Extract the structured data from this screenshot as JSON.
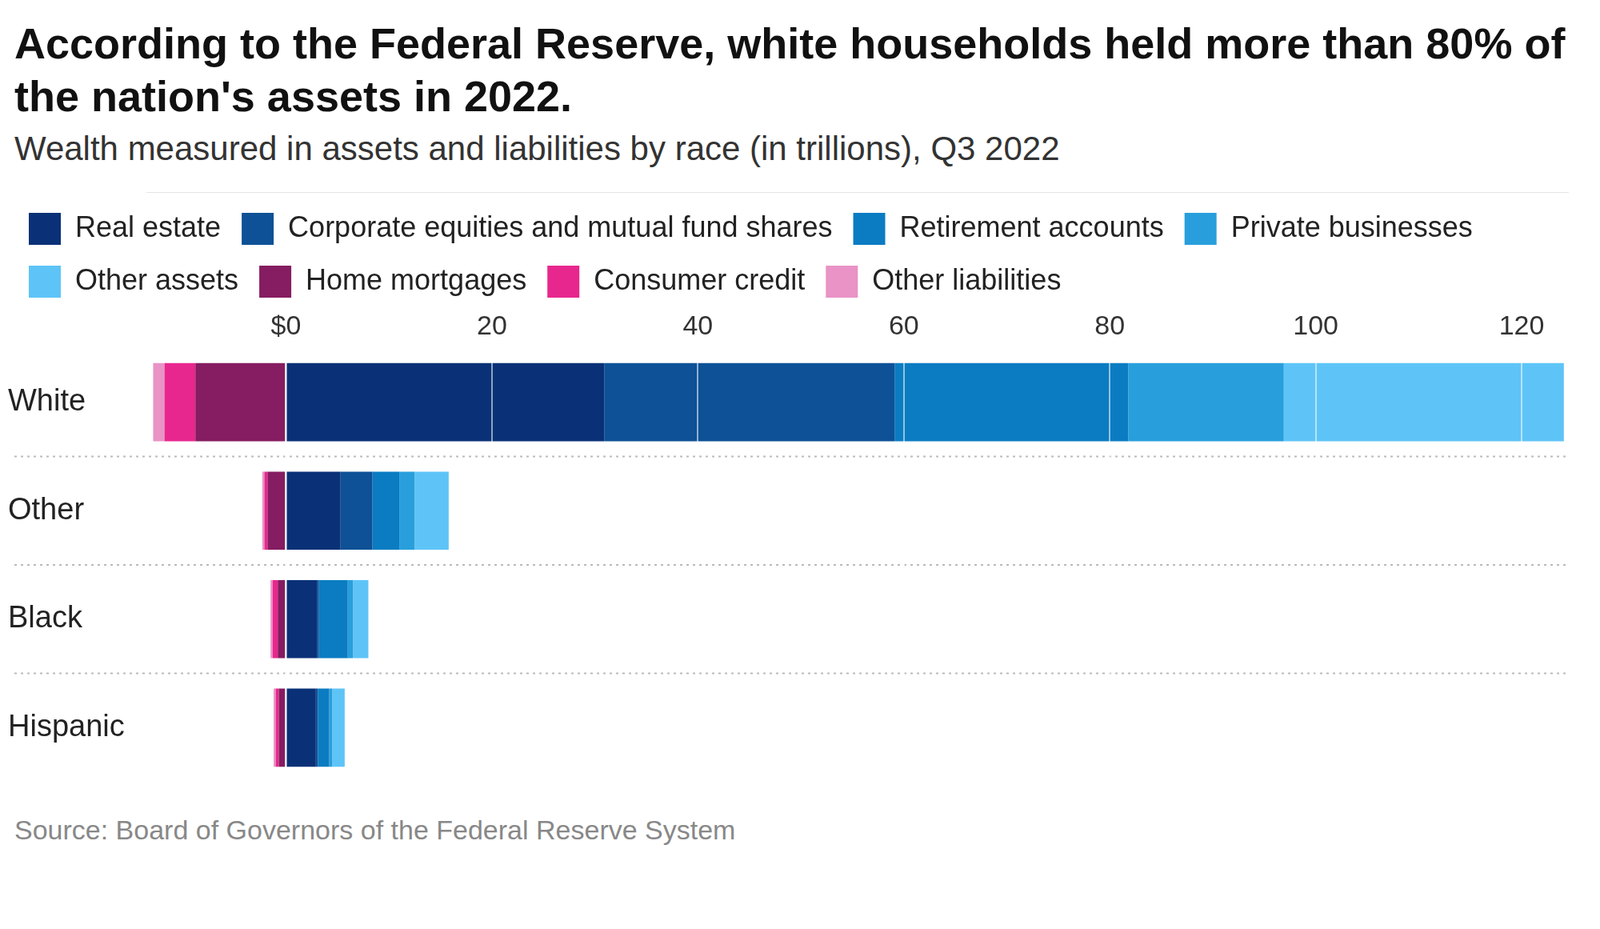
{
  "chart_data": {
    "type": "bar",
    "title": "According to the Federal Reserve, white households held more than 80% of the nation's assets in 2022.",
    "subtitle": "Wealth measured in assets and liabilities by race (in trillions), Q3 2022",
    "source": "Source: Board of Governors of the Federal Reserve System",
    "orientation": "horizontal",
    "stacked": true,
    "grid": true,
    "legend": "top",
    "categories": [
      "White",
      "Other",
      "Black",
      "Hispanic"
    ],
    "series": [
      {
        "name": "Real estate",
        "color": "#0a3177",
        "values": [
          30.9,
          5.3,
          3.0,
          2.9
        ]
      },
      {
        "name": "Corporate equities and mutual fund shares",
        "color": "#0e5196",
        "values": [
          28.2,
          3.1,
          0.2,
          0.2
        ]
      },
      {
        "name": "Retirement accounts",
        "color": "#0b7cc2",
        "values": [
          22.7,
          2.6,
          2.8,
          1.1
        ]
      },
      {
        "name": "Private businesses",
        "color": "#289fdc",
        "values": [
          15.1,
          1.5,
          0.5,
          0.3
        ]
      },
      {
        "name": "Other assets",
        "color": "#5ec4f7",
        "values": [
          27.2,
          3.3,
          1.5,
          1.2
        ]
      },
      {
        "name": "Home mortgages",
        "color": "#861c61",
        "values": [
          -8.8,
          -1.8,
          -0.8,
          -0.7
        ]
      },
      {
        "name": "Consumer credit",
        "color": "#e8278e",
        "values": [
          -3.0,
          -0.3,
          -0.5,
          -0.3
        ]
      },
      {
        "name": "Other liabilities",
        "color": "#e993c6",
        "values": [
          -1.1,
          -0.2,
          -0.2,
          -0.2
        ]
      }
    ],
    "xlim": [
      -13.5,
      124.5
    ],
    "xticks": [
      {
        "value": 0,
        "label": "$0"
      },
      20,
      40,
      60,
      80,
      100,
      120
    ]
  }
}
